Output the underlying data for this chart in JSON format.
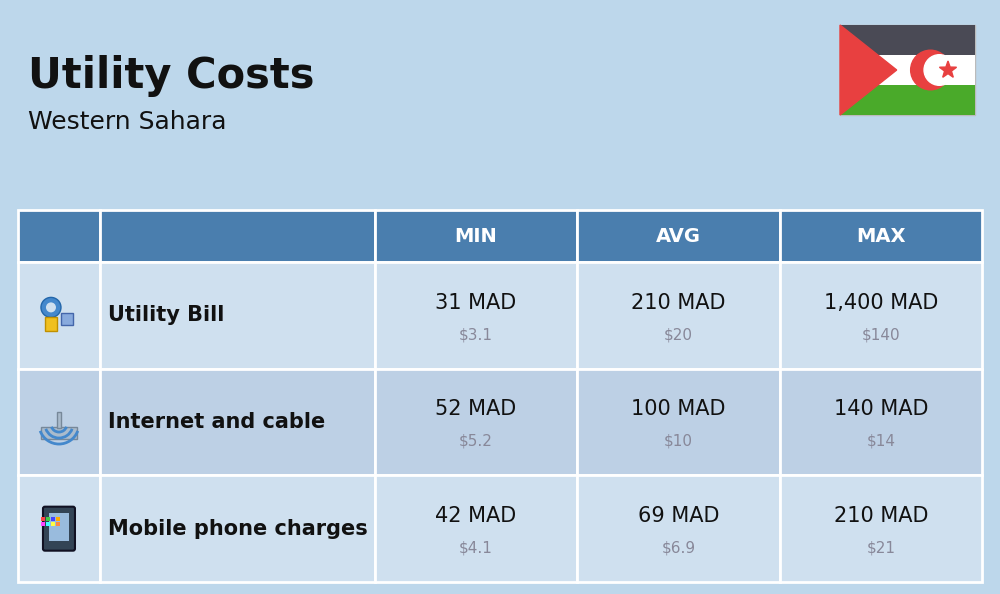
{
  "title": "Utility Costs",
  "subtitle": "Western Sahara",
  "background_color": "#bdd7eb",
  "header_color": "#4a7eae",
  "header_text_color": "#ffffff",
  "row_color_odd": "#cfe0ef",
  "row_color_even": "#bdd0e5",
  "border_color": "#ffffff",
  "primary_text_color": "#111111",
  "secondary_text_color": "#888899",
  "label_text_color": "#111111",
  "headers": [
    "MIN",
    "AVG",
    "MAX"
  ],
  "rows": [
    {
      "label": "Utility Bill",
      "min_mad": "31 MAD",
      "min_usd": "$3.1",
      "avg_mad": "210 MAD",
      "avg_usd": "$20",
      "max_mad": "1,400 MAD",
      "max_usd": "$140"
    },
    {
      "label": "Internet and cable",
      "min_mad": "52 MAD",
      "min_usd": "$5.2",
      "avg_mad": "100 MAD",
      "avg_usd": "$10",
      "max_mad": "140 MAD",
      "max_usd": "$14"
    },
    {
      "label": "Mobile phone charges",
      "min_mad": "42 MAD",
      "min_usd": "$4.1",
      "avg_mad": "69 MAD",
      "avg_usd": "$6.9",
      "max_mad": "210 MAD",
      "max_usd": "$21"
    }
  ],
  "flag": {
    "black": "#4a4a55",
    "white": "#ffffff",
    "green": "#4aaa2a",
    "red": "#e84040",
    "crescent_red": "#e84040",
    "star_red": "#e84040"
  },
  "title_fontsize": 30,
  "subtitle_fontsize": 18,
  "header_fontsize": 14,
  "cell_main_fontsize": 15,
  "cell_sub_fontsize": 11,
  "label_fontsize": 15
}
